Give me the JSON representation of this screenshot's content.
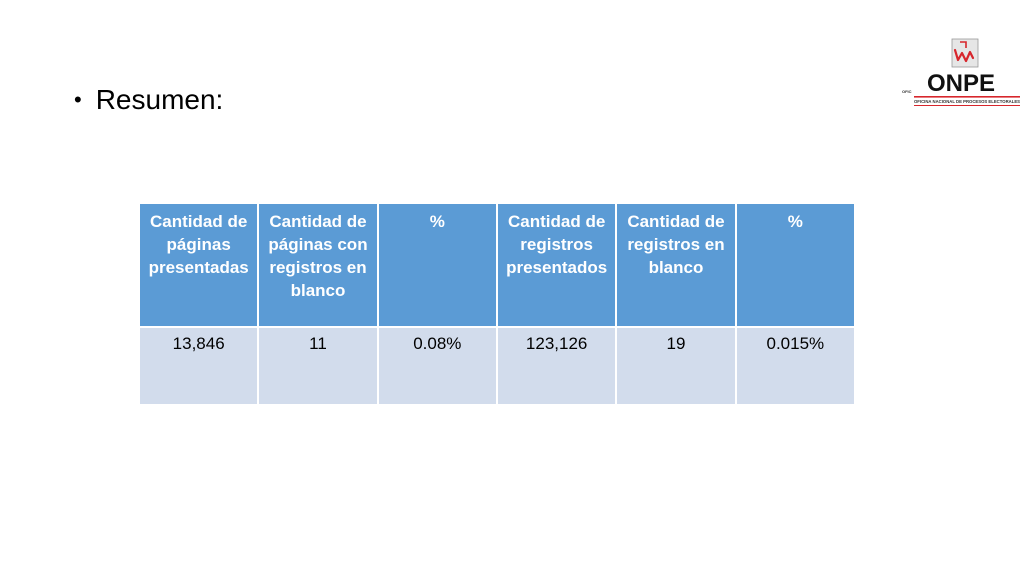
{
  "slide": {
    "bullet": "Resumen:"
  },
  "logo": {
    "brand": "ONPE",
    "subtitle": "OFICINA NACIONAL DE PROCESOS ELECTORALES",
    "small_tag": "OFIC",
    "accent_color": "#d7262c"
  },
  "table": {
    "header_color": "#5b9bd5",
    "cell_color": "#d2dcec",
    "headers": [
      "Cantidad de páginas presentadas",
      "Cantidad de páginas con registros en blanco",
      "%",
      "Cantidad de registros presentados",
      "Cantidad de registros en blanco",
      "%"
    ],
    "rows": [
      [
        "13,846",
        "11",
        "0.08%",
        "123,126",
        "19",
        "0.015%"
      ]
    ]
  }
}
